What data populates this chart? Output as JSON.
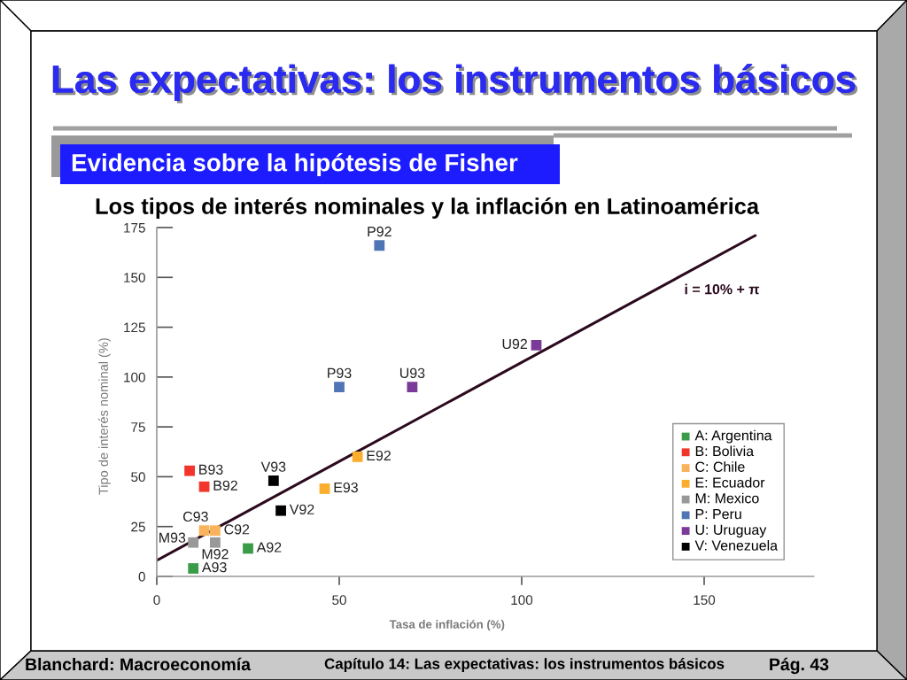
{
  "chart_data": {
    "type": "scatter",
    "title": "Las expectativas: los instrumentos básicos",
    "subtitle": "Evidencia sobre la hipótesis de Fisher",
    "xlabel": "Tasa de inflación (%)",
    "ylabel": "Tipo de interés nominal (%)",
    "annotations": [
      "Los tipos de interés nominales y la inflación en Latinoamérica",
      "i = 10% + π",
      "Blanchard: Macroeconomía",
      "Capítulo 14: Las expectativas: los instrumentos básicos",
      "Pág. 43"
    ],
    "xlim": [
      0,
      180
    ],
    "xticks": [
      0,
      50,
      100,
      150
    ],
    "ylim": [
      0,
      175
    ],
    "yticks": [
      0,
      25,
      50,
      75,
      100,
      125,
      150,
      175
    ],
    "legend": "bottom right",
    "marker": "square",
    "series": [
      {
        "type": "line",
        "marker": "none",
        "color": "#2b0a1e",
        "x": [
          0,
          164
        ],
        "values": [
          8,
          171
        ]
      },
      {
        "name": "A: Argentina",
        "color": "#3a9b48",
        "x": [
          25,
          10
        ],
        "values": [
          14,
          4
        ],
        "value_labels": [
          "A92",
          "A93"
        ]
      },
      {
        "name": "B: Bolivia",
        "color": "#f2352a",
        "x": [
          13,
          9
        ],
        "values": [
          45,
          53
        ],
        "value_labels": [
          "B92",
          "B93"
        ]
      },
      {
        "name": "C: Chile",
        "color": "#f9b35c",
        "x": [
          16,
          13
        ],
        "values": [
          23,
          23
        ],
        "value_labels": [
          "C92",
          "C93"
        ]
      },
      {
        "name": "E: Ecuador",
        "color": "#fbad2d",
        "x": [
          55,
          46
        ],
        "values": [
          60,
          44
        ],
        "value_labels": [
          "E92",
          "E93"
        ]
      },
      {
        "name": "M: Mexico",
        "color": "#999999",
        "x": [
          16,
          10
        ],
        "values": [
          17,
          17
        ],
        "value_labels": [
          "M92",
          "M93"
        ]
      },
      {
        "name": "P: Peru",
        "color": "#4f75b5",
        "x": [
          61,
          50
        ],
        "values": [
          166,
          95
        ],
        "value_labels": [
          "P92",
          "P93"
        ]
      },
      {
        "name": "U: Uruguay",
        "color": "#7b3a98",
        "x": [
          104,
          70
        ],
        "values": [
          116,
          95
        ],
        "value_labels": [
          "U92",
          "U93"
        ]
      },
      {
        "name": "V: Venezuela",
        "color": "#000000",
        "x": [
          34,
          32
        ],
        "values": [
          33,
          48
        ],
        "value_labels": [
          "V92",
          "V93"
        ]
      }
    ]
  }
}
